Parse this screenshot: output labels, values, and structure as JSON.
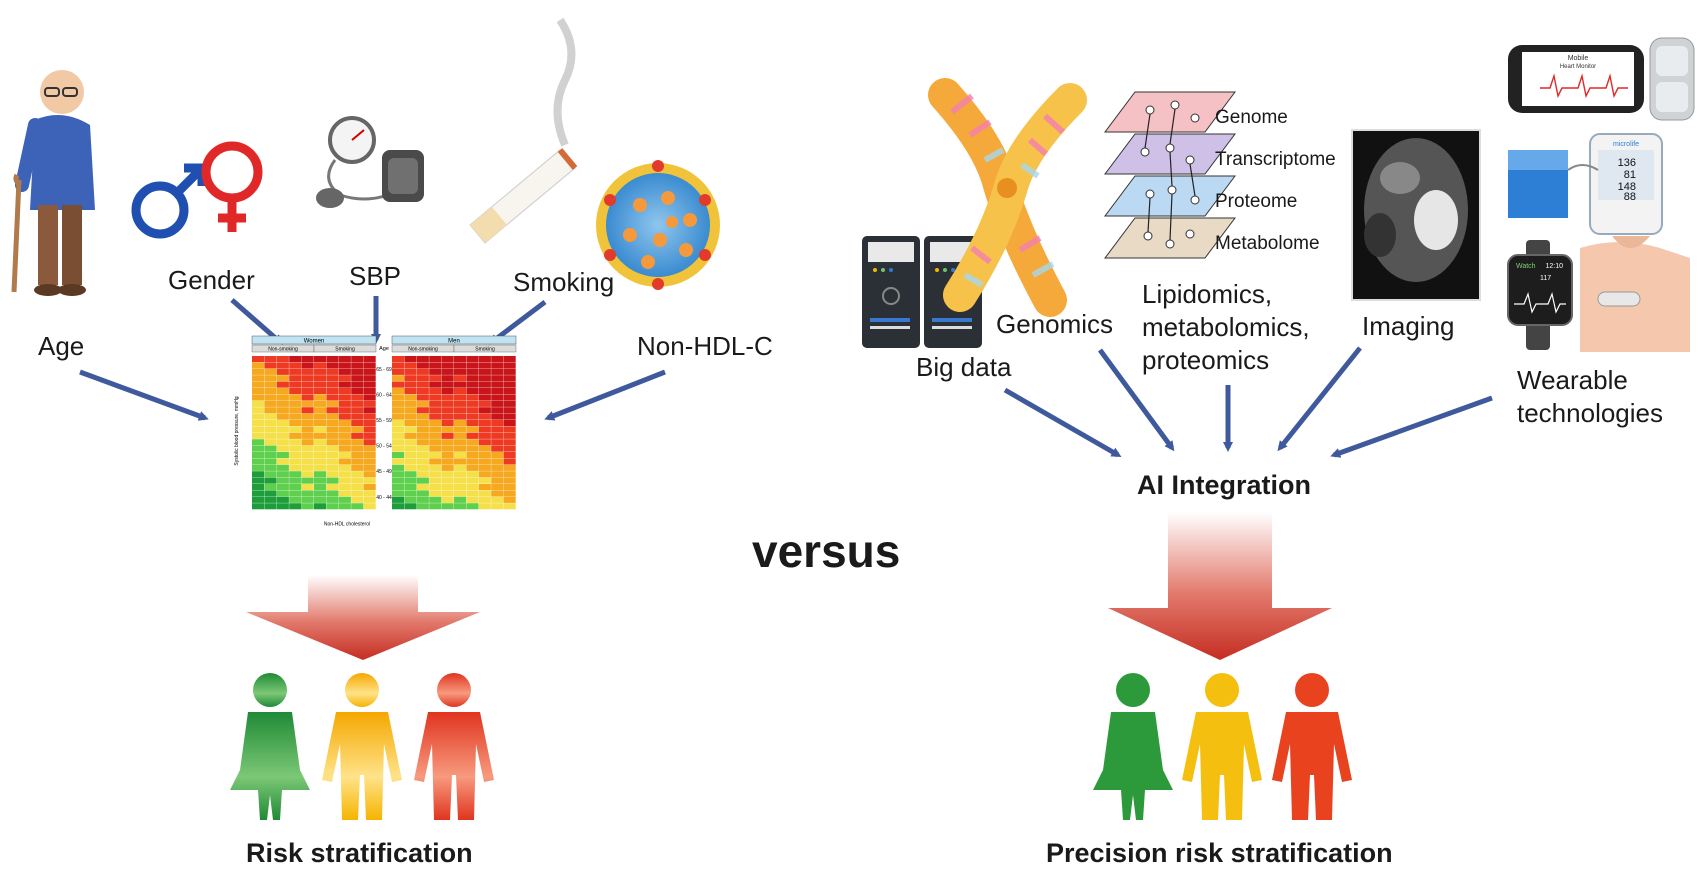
{
  "labels": {
    "age": "Age",
    "gender": "Gender",
    "sbp": "SBP",
    "smoking": "Smoking",
    "non_hdl": "Non-HDL-C",
    "versus": "versus",
    "risk_strat": "Risk stratification",
    "big_data": "Big data",
    "genomics": "Genomics",
    "lipidomics": "Lipidomics,\nmetabolomics,\nproteomics",
    "imaging": "Imaging",
    "wearable": "Wearable\ntechnologies",
    "ai": "AI Integration",
    "precision": "Precision risk stratification"
  },
  "omics_layers": [
    "Genome",
    "Transcriptome",
    "Proteome",
    "Metabolome"
  ],
  "risk_chart": {
    "women": "Women",
    "men": "Men",
    "non_smoking": "Non-smoking",
    "smoking": "Smoking",
    "age_header": "Age",
    "age_groups": [
      "65 - 69",
      "60 - 64",
      "55 - 59",
      "50 - 54",
      "45 - 49",
      "40 - 44"
    ],
    "y_axis": "Systolic blood pressure, mmHg",
    "x_axis": "Non-HDL cholesterol"
  },
  "devices": {
    "monitor_title": "Mobile",
    "monitor_subtitle": "Heart Monitor",
    "bp_brand": "microlife",
    "bp_values": [
      "136",
      "81",
      "148",
      "88"
    ],
    "watch_app": "Watch",
    "watch_time": "12:10",
    "watch_hr": "117"
  },
  "colors": {
    "arrow": "#3f5a9c",
    "green": "#2e8b35",
    "yellow": "#f2b800",
    "red": "#e0341f",
    "big_arrow": "#c8342a"
  }
}
